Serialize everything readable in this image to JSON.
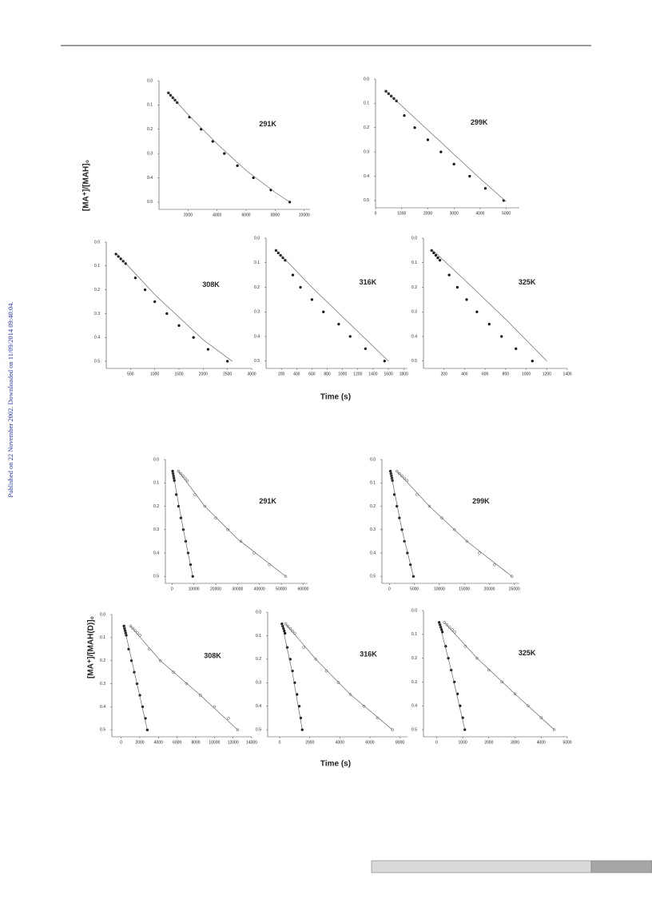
{
  "side_note": "Published on 22 November 2002. Downloaded on 11/09/2014 09:40:04.",
  "figures": [
    {
      "y_label": "[MA⁺]/[MAH]₀",
      "x_label": "Time (s)"
    },
    {
      "y_label": "[MA⁺]/[MAH(D)]₀",
      "x_label": "Time (s)"
    }
  ],
  "chart_data": [
    {
      "type": "scatter",
      "annotation": "291K",
      "xlim": [
        0,
        10400
      ],
      "xticks": [
        2000,
        4000,
        6000,
        8000,
        10000
      ],
      "ylim": [
        0,
        0.53
      ],
      "y_inverted": true,
      "yticks": [
        {
          "value": 0,
          "label": "0.0"
        },
        0.1,
        0.2,
        0.3,
        0.4,
        0.5
      ],
      "series": [
        {
          "marker": "filled",
          "x": [
            650,
            800,
            950,
            1100,
            1250,
            2100,
            2900,
            3700,
            4500,
            5400,
            6500,
            7700,
            9000
          ],
          "values": [
            0.05,
            0.06,
            0.07,
            0.08,
            0.09,
            0.15,
            0.2,
            0.25,
            0.3,
            0.35,
            0.4,
            0.45,
            0.5
          ]
        },
        {
          "marker": "line",
          "x": [
            600,
            2000,
            4000,
            6000,
            8000,
            9000
          ],
          "values": [
            0.045,
            0.14,
            0.26,
            0.37,
            0.46,
            0.5
          ]
        }
      ]
    },
    {
      "type": "scatter",
      "annotation": "299K",
      "xlim": [
        0,
        5500
      ],
      "xticks": [
        0,
        1000,
        2000,
        3000,
        4000,
        5000
      ],
      "ylim": [
        0,
        0.53
      ],
      "y_inverted": true,
      "yticks": [
        {
          "value": 0,
          "label": "0.0"
        },
        0.1,
        0.2,
        0.3,
        0.4,
        0.5
      ],
      "series": [
        {
          "marker": "filled",
          "x": [
            400,
            500,
            600,
            700,
            800,
            1100,
            1500,
            2000,
            2500,
            3000,
            3600,
            4200,
            4900
          ],
          "values": [
            0.05,
            0.06,
            0.07,
            0.08,
            0.09,
            0.15,
            0.2,
            0.25,
            0.3,
            0.35,
            0.4,
            0.45,
            0.5
          ]
        },
        {
          "marker": "line",
          "x": [
            350,
            1000,
            2000,
            3000,
            4000,
            5000
          ],
          "values": [
            0.045,
            0.11,
            0.21,
            0.31,
            0.41,
            0.505
          ]
        }
      ]
    },
    {
      "type": "scatter",
      "annotation": "308K",
      "xlim": [
        0,
        3000
      ],
      "xticks": [
        500,
        1000,
        1500,
        2000,
        2500,
        3000
      ],
      "ylim": [
        0,
        0.53
      ],
      "y_inverted": true,
      "yticks": [
        {
          "value": 0,
          "label": "0.0"
        },
        0.1,
        0.2,
        0.3,
        0.4,
        0.5
      ],
      "series": [
        {
          "marker": "filled",
          "x": [
            200,
            250,
            300,
            350,
            400,
            600,
            800,
            1000,
            1250,
            1500,
            1800,
            2100,
            2500
          ],
          "values": [
            0.05,
            0.06,
            0.07,
            0.08,
            0.09,
            0.15,
            0.2,
            0.25,
            0.3,
            0.35,
            0.4,
            0.45,
            0.5
          ]
        },
        {
          "marker": "line",
          "x": [
            200,
            1000,
            2000,
            2600
          ],
          "values": [
            0.045,
            0.22,
            0.41,
            0.5
          ]
        }
      ]
    },
    {
      "type": "scatter",
      "annotation": "316K",
      "xlim": [
        0,
        1850
      ],
      "xticks": [
        200,
        400,
        600,
        800,
        1000,
        1200,
        1400,
        1600,
        1800
      ],
      "ylim": [
        0,
        0.53
      ],
      "y_inverted": true,
      "yticks": [
        {
          "value": 0,
          "label": "0.0"
        },
        0.1,
        0.2,
        0.3,
        0.4,
        0.5
      ],
      "series": [
        {
          "marker": "filled",
          "x": [
            130,
            160,
            190,
            220,
            250,
            350,
            450,
            600,
            750,
            950,
            1100,
            1300,
            1550
          ],
          "values": [
            0.05,
            0.06,
            0.07,
            0.08,
            0.09,
            0.15,
            0.2,
            0.25,
            0.3,
            0.35,
            0.4,
            0.45,
            0.5
          ]
        },
        {
          "marker": "line",
          "x": [
            120,
            600,
            1200,
            1600
          ],
          "values": [
            0.045,
            0.2,
            0.38,
            0.5
          ]
        }
      ]
    },
    {
      "type": "scatter",
      "annotation": "325K",
      "xlim": [
        0,
        1400
      ],
      "xticks": [
        200,
        400,
        600,
        800,
        1000,
        1200,
        1400
      ],
      "ylim": [
        0,
        0.53
      ],
      "y_inverted": true,
      "yticks": [
        {
          "value": 0,
          "label": "0.0"
        },
        0.1,
        0.2,
        0.3,
        0.4,
        0.5
      ],
      "series": [
        {
          "marker": "filled",
          "x": [
            80,
            100,
            120,
            140,
            160,
            250,
            330,
            420,
            520,
            640,
            760,
            900,
            1060
          ],
          "values": [
            0.05,
            0.06,
            0.07,
            0.08,
            0.09,
            0.15,
            0.2,
            0.25,
            0.3,
            0.35,
            0.4,
            0.45,
            0.5
          ]
        },
        {
          "marker": "line",
          "x": [
            80,
            400,
            800,
            1200
          ],
          "values": [
            0.045,
            0.17,
            0.33,
            0.5
          ]
        }
      ]
    },
    {
      "type": "scatter",
      "annotation": "291K",
      "xlim": [
        -3000,
        62000
      ],
      "xticks": [
        0,
        10000,
        20000,
        30000,
        40000,
        50000,
        60000
      ],
      "ylim": [
        0,
        0.53
      ],
      "y_inverted": true,
      "yticks": [
        {
          "value": 0,
          "label": "0.0"
        },
        0.1,
        0.2,
        0.3,
        0.4,
        0.5
      ],
      "series": [
        {
          "marker": "filled",
          "x": [
            300,
            500,
            700,
            900,
            1100,
            2000,
            3000,
            4100,
            5200,
            6300,
            7400,
            8500,
            9500
          ],
          "values": [
            0.05,
            0.06,
            0.07,
            0.08,
            0.09,
            0.15,
            0.2,
            0.25,
            0.3,
            0.35,
            0.4,
            0.45,
            0.5
          ]
        },
        {
          "marker": "line",
          "x": [
            300,
            5000,
            9500
          ],
          "values": [
            0.05,
            0.29,
            0.5
          ]
        },
        {
          "marker": "open",
          "x": [
            3000,
            4000,
            5000,
            6000,
            7000,
            10500,
            15000,
            20000,
            25500,
            31500,
            37500,
            44500,
            52000
          ],
          "values": [
            0.05,
            0.06,
            0.07,
            0.08,
            0.09,
            0.15,
            0.2,
            0.25,
            0.3,
            0.35,
            0.4,
            0.45,
            0.5
          ]
        },
        {
          "marker": "line",
          "x": [
            3000,
            15000,
            30000,
            52000
          ],
          "values": [
            0.05,
            0.2,
            0.34,
            0.5
          ]
        }
      ]
    },
    {
      "type": "scatter",
      "annotation": "299K",
      "xlim": [
        -1500,
        26000
      ],
      "xticks": [
        0,
        5000,
        10000,
        15000,
        20000,
        25000
      ],
      "ylim": [
        0,
        0.53
      ],
      "y_inverted": true,
      "yticks": [
        {
          "value": 0,
          "label": "0.0"
        },
        0.1,
        0.2,
        0.3,
        0.4,
        0.5
      ],
      "series": [
        {
          "marker": "filled",
          "x": [
            200,
            300,
            400,
            500,
            600,
            1000,
            1500,
            2000,
            2500,
            3000,
            3600,
            4200,
            4800
          ],
          "values": [
            0.05,
            0.06,
            0.07,
            0.08,
            0.09,
            0.15,
            0.2,
            0.25,
            0.3,
            0.35,
            0.4,
            0.45,
            0.5
          ]
        },
        {
          "marker": "line",
          "x": [
            200,
            2500,
            4800
          ],
          "values": [
            0.05,
            0.3,
            0.5
          ]
        },
        {
          "marker": "open",
          "x": [
            1500,
            2000,
            2500,
            3000,
            3500,
            5500,
            8000,
            10500,
            13000,
            15500,
            18000,
            21000,
            24500
          ],
          "values": [
            0.05,
            0.06,
            0.07,
            0.08,
            0.09,
            0.15,
            0.2,
            0.25,
            0.3,
            0.35,
            0.4,
            0.45,
            0.5
          ]
        },
        {
          "marker": "line",
          "x": [
            1500,
            8000,
            15500,
            24500
          ],
          "values": [
            0.05,
            0.2,
            0.35,
            0.5
          ]
        }
      ]
    },
    {
      "type": "scatter",
      "annotation": "308K",
      "xlim": [
        -1000,
        14000
      ],
      "xticks": [
        0,
        2000,
        4000,
        6000,
        8000,
        10000,
        12000,
        14000
      ],
      "ylim": [
        0,
        0.53
      ],
      "y_inverted": true,
      "yticks": [
        {
          "value": 0,
          "label": "0.0"
        },
        0.1,
        0.2,
        0.3,
        0.4,
        0.5
      ],
      "series": [
        {
          "marker": "filled",
          "x": [
            300,
            360,
            420,
            480,
            540,
            800,
            1100,
            1400,
            1700,
            2000,
            2300,
            2600,
            2800
          ],
          "values": [
            0.05,
            0.06,
            0.07,
            0.08,
            0.09,
            0.15,
            0.2,
            0.25,
            0.3,
            0.35,
            0.4,
            0.45,
            0.5
          ]
        },
        {
          "marker": "line",
          "x": [
            300,
            1700,
            2800
          ],
          "values": [
            0.05,
            0.3,
            0.5
          ]
        },
        {
          "marker": "open",
          "x": [
            1000,
            1250,
            1500,
            1750,
            2000,
            3000,
            4200,
            5600,
            7000,
            8500,
            10000,
            11500,
            12500
          ],
          "values": [
            0.05,
            0.06,
            0.07,
            0.08,
            0.09,
            0.15,
            0.2,
            0.25,
            0.3,
            0.35,
            0.4,
            0.45,
            0.5
          ]
        },
        {
          "marker": "line",
          "x": [
            1000,
            4200,
            8500,
            12500
          ],
          "values": [
            0.05,
            0.2,
            0.35,
            0.5
          ]
        }
      ]
    },
    {
      "type": "scatter",
      "annotation": "316K",
      "xlim": [
        -800,
        8500
      ],
      "xticks": [
        0,
        2000,
        4000,
        6000,
        8000
      ],
      "ylim": [
        0,
        0.53
      ],
      "y_inverted": true,
      "yticks": [
        {
          "value": 0,
          "label": "0.0"
        },
        0.1,
        0.2,
        0.3,
        0.4,
        0.5
      ],
      "series": [
        {
          "marker": "filled",
          "x": [
            150,
            200,
            250,
            300,
            350,
            500,
            700,
            850,
            1000,
            1150,
            1300,
            1400,
            1500
          ],
          "values": [
            0.05,
            0.06,
            0.07,
            0.08,
            0.09,
            0.15,
            0.2,
            0.25,
            0.3,
            0.35,
            0.4,
            0.45,
            0.5
          ]
        },
        {
          "marker": "line",
          "x": [
            150,
            850,
            1500
          ],
          "values": [
            0.05,
            0.26,
            0.5
          ]
        },
        {
          "marker": "open",
          "x": [
            400,
            550,
            700,
            850,
            1000,
            1600,
            2400,
            3100,
            3900,
            4700,
            5600,
            6500,
            7500
          ],
          "values": [
            0.05,
            0.06,
            0.07,
            0.08,
            0.09,
            0.15,
            0.2,
            0.25,
            0.3,
            0.35,
            0.4,
            0.45,
            0.5
          ]
        },
        {
          "marker": "line",
          "x": [
            400,
            2400,
            4700,
            7500
          ],
          "values": [
            0.05,
            0.2,
            0.35,
            0.5
          ]
        }
      ]
    },
    {
      "type": "scatter",
      "annotation": "325K",
      "xlim": [
        -500,
        5000
      ],
      "xticks": [
        0,
        1000,
        2000,
        3000,
        4000,
        5000
      ],
      "ylim": [
        0,
        0.53
      ],
      "y_inverted": true,
      "yticks": [
        {
          "value": 0,
          "label": "0.0"
        },
        0.1,
        0.2,
        0.3,
        0.4,
        0.5
      ],
      "series": [
        {
          "marker": "filled",
          "x": [
            100,
            130,
            160,
            190,
            220,
            350,
            450,
            560,
            680,
            800,
            900,
            1000,
            1080
          ],
          "values": [
            0.05,
            0.06,
            0.07,
            0.08,
            0.09,
            0.15,
            0.2,
            0.25,
            0.3,
            0.35,
            0.4,
            0.45,
            0.5
          ]
        },
        {
          "marker": "line",
          "x": [
            100,
            560,
            1080
          ],
          "values": [
            0.05,
            0.25,
            0.5
          ]
        },
        {
          "marker": "open",
          "x": [
            300,
            400,
            500,
            600,
            700,
            1100,
            1550,
            2000,
            2500,
            3000,
            3500,
            4000,
            4500
          ],
          "values": [
            0.05,
            0.06,
            0.07,
            0.08,
            0.09,
            0.15,
            0.2,
            0.25,
            0.3,
            0.35,
            0.4,
            0.45,
            0.5
          ]
        },
        {
          "marker": "line",
          "x": [
            300,
            1550,
            3000,
            4500
          ],
          "values": [
            0.05,
            0.2,
            0.35,
            0.5
          ]
        }
      ]
    }
  ]
}
